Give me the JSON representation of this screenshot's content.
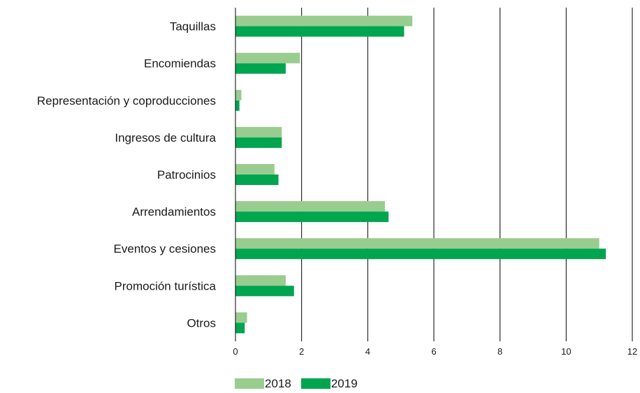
{
  "chart_data": {
    "type": "bar",
    "orientation": "horizontal",
    "categories": [
      "Taquillas",
      "Encomiendas",
      "Representación y coproducciones",
      "Ingresos de cultura",
      "Patrocinios",
      "Arrendamientos",
      "Eventos y cesiones",
      "Promoción turística",
      "Otros"
    ],
    "series": [
      {
        "name": "2018",
        "color": "#99cc8f",
        "values": [
          5.35,
          1.95,
          0.18,
          1.4,
          1.18,
          4.52,
          11.0,
          1.52,
          0.35
        ]
      },
      {
        "name": "2019",
        "color": "#00a54f",
        "values": [
          5.1,
          1.52,
          0.12,
          1.4,
          1.3,
          4.63,
          11.2,
          1.77,
          0.28
        ]
      }
    ],
    "xlim": [
      0,
      12
    ],
    "xticks": [
      "0",
      "2",
      "4",
      "6",
      "8",
      "10",
      "12"
    ],
    "grid": "vertical",
    "legend_position": "bottom"
  }
}
